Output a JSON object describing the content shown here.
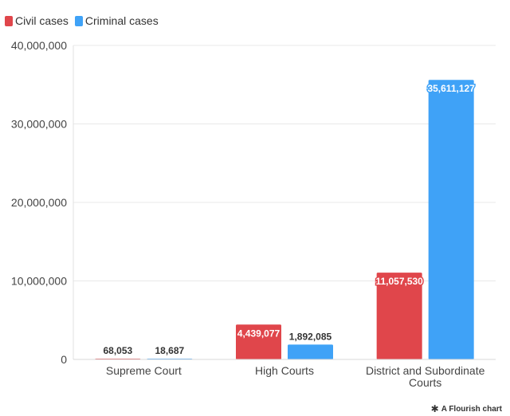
{
  "legend": [
    {
      "name": "Civil cases",
      "color": "#e0464b"
    },
    {
      "name": "Criminal cases",
      "color": "#3fa2f7"
    }
  ],
  "footer": {
    "label": "A Flourish chart",
    "icon": "flourish-asterisk-icon"
  },
  "chart_data": {
    "type": "bar",
    "categories": [
      "Supreme Court",
      "High Courts",
      "District and Subordinate Courts"
    ],
    "series": [
      {
        "name": "Civil cases",
        "color": "#e0464b",
        "values": [
          68053,
          4439077,
          11057530
        ],
        "labels": [
          "68,053",
          "4,439,077",
          "11,057,530"
        ]
      },
      {
        "name": "Criminal cases",
        "color": "#3fa2f7",
        "values": [
          18687,
          1892085,
          35611127
        ],
        "labels": [
          "18,687",
          "1,892,085",
          "35,611,127"
        ]
      }
    ],
    "ylim": [
      0,
      40000000
    ],
    "yticks": [
      0,
      10000000,
      20000000,
      30000000,
      40000000
    ],
    "ytick_labels": [
      "0",
      "10,000,000",
      "20,000,000",
      "30,000,000",
      "40,000,000"
    ],
    "grid": true,
    "legend_position": "top-left",
    "xlabel": "",
    "ylabel": ""
  }
}
